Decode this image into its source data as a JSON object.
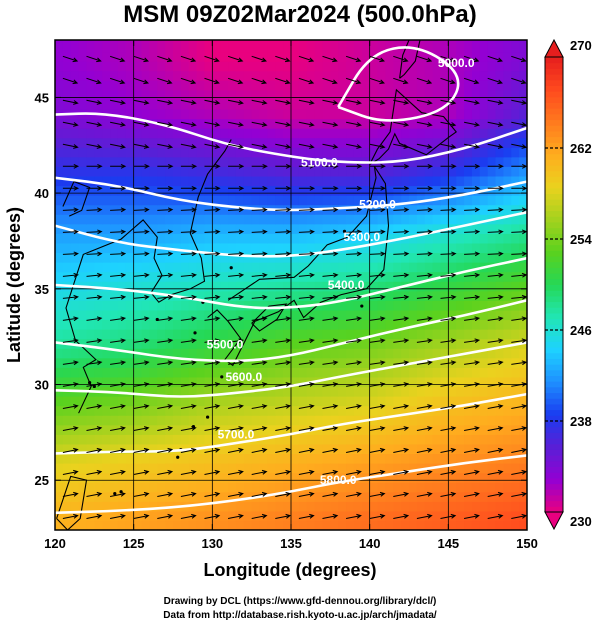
{
  "chart_data": {
    "type": "heatmap",
    "title": "MSM 09Z02Mar2024 (500.0hPa)",
    "xlabel": "Longitude (degrees)",
    "ylabel": "Latitude  (degrees)",
    "xlim": [
      120,
      150
    ],
    "ylim": [
      22.4,
      48
    ],
    "x_ticks": [
      "120",
      "125",
      "130",
      "135",
      "140",
      "145",
      "150"
    ],
    "y_ticks": [
      "25",
      "30",
      "35",
      "40",
      "45"
    ],
    "x_tick_values": [
      120,
      125,
      130,
      135,
      140,
      145,
      150
    ],
    "y_tick_values": [
      25,
      30,
      35,
      40,
      45
    ],
    "colorbar": {
      "ticks": [
        "270",
        "262",
        "254",
        "246",
        "238",
        "230"
      ],
      "tick_values": [
        270,
        262,
        254,
        246,
        238,
        230
      ],
      "min": 230,
      "max": 270,
      "colors": [
        "#e9007f",
        "#9400d3",
        "#5a1fd6",
        "#1a3cf0",
        "#1e8fff",
        "#1ed2ff",
        "#21e6b4",
        "#25d856",
        "#5ad21e",
        "#a3d21e",
        "#ead21e",
        "#ffad1e",
        "#ff7a1e",
        "#ff4a1e",
        "#e61e1e"
      ]
    },
    "temperature_field": {
      "lat_nodes": [
        23,
        26,
        29,
        32,
        35,
        38,
        41,
        44,
        47
      ],
      "lon_nodes": [
        120,
        125,
        130,
        135,
        140,
        145,
        150
      ],
      "values": [
        [
          261,
          262,
          263,
          264,
          265,
          266,
          267
        ],
        [
          258,
          259,
          260,
          261,
          262,
          263,
          264
        ],
        [
          253,
          254,
          256,
          257,
          258,
          260,
          261
        ],
        [
          248,
          249,
          251,
          253,
          254,
          256,
          258
        ],
        [
          245,
          246,
          247,
          248,
          249,
          251,
          253
        ],
        [
          242,
          242,
          243,
          243,
          244,
          246,
          248
        ],
        [
          238,
          238,
          237,
          236,
          236,
          238,
          242
        ],
        [
          234,
          233,
          232,
          231,
          231,
          232,
          236
        ],
        [
          233,
          232,
          230,
          230,
          231,
          232,
          234
        ]
      ]
    },
    "height_contours": [
      {
        "label": "5000.0",
        "lons": [
          138,
          140,
          143,
          146,
          145,
          141,
          138
        ],
        "lats": [
          44.5,
          47.3,
          47.8,
          46.2,
          44.3,
          43.6,
          44.5
        ],
        "label_at": [
          145.5,
          46.8
        ]
      },
      {
        "label": "5100.0",
        "lons": [
          120,
          123,
          127,
          131,
          135,
          138,
          142,
          146,
          150
        ],
        "lats": [
          44.1,
          44.2,
          43.6,
          42.5,
          41.9,
          41.6,
          41.6,
          42.3,
          43.4
        ],
        "label_at": [
          136.8,
          41.6
        ]
      },
      {
        "label": "5200.0",
        "lons": [
          120,
          124,
          128,
          132,
          135,
          138,
          142,
          146,
          150
        ],
        "lats": [
          40.8,
          40.4,
          39.6,
          39.2,
          39.1,
          39.2,
          39.4,
          39.9,
          40.6
        ],
        "label_at": [
          140.5,
          39.4
        ]
      },
      {
        "label": "5300.0",
        "lons": [
          120,
          124,
          128,
          132,
          135,
          138,
          142,
          146,
          150
        ],
        "lats": [
          38.3,
          37.4,
          37.0,
          36.7,
          36.7,
          37.0,
          37.6,
          38.3,
          39.0
        ],
        "label_at": [
          139.5,
          37.7
        ]
      },
      {
        "label": "5400.0",
        "lons": [
          120,
          124,
          128,
          132,
          135,
          138,
          142,
          146,
          150
        ],
        "lats": [
          35.2,
          35.0,
          34.6,
          34.0,
          34.0,
          34.3,
          35.1,
          35.9,
          36.6
        ],
        "label_at": [
          138.5,
          35.2
        ]
      },
      {
        "label": "5500.0",
        "lons": [
          120,
          124,
          128,
          132,
          135,
          138,
          142,
          146,
          150
        ],
        "lats": [
          32.2,
          31.8,
          31.3,
          31.2,
          31.5,
          32.1,
          32.9,
          33.6,
          34.4
        ],
        "label_at": [
          130.8,
          32.1
        ]
      },
      {
        "label": "5600.0",
        "lons": [
          120,
          124,
          128,
          132,
          135,
          138,
          142,
          146,
          150
        ],
        "lats": [
          29.7,
          29.6,
          29.3,
          29.6,
          29.9,
          30.4,
          31.0,
          31.6,
          32.2
        ],
        "label_at": [
          132.0,
          30.4
        ]
      },
      {
        "label": "5700.0",
        "lons": [
          120,
          124,
          128,
          132,
          135,
          138,
          142,
          146,
          150
        ],
        "lats": [
          26.4,
          26.5,
          26.5,
          27.0,
          27.4,
          27.9,
          28.4,
          28.9,
          29.5
        ],
        "label_at": [
          131.5,
          27.4
        ]
      },
      {
        "label": "5800.0",
        "lons": [
          120,
          124,
          128,
          132,
          135,
          138,
          142,
          146,
          150
        ],
        "lats": [
          23.3,
          23.4,
          23.6,
          24.0,
          24.4,
          24.9,
          25.4,
          25.9,
          26.3
        ],
        "label_at": [
          138.0,
          25.0
        ]
      }
    ],
    "wind_direction_by_latitude": [
      {
        "lat": 47,
        "u": 0.9,
        "v": -0.3
      },
      {
        "lat": 44,
        "u": 1.0,
        "v": -0.2
      },
      {
        "lat": 41,
        "u": 1.0,
        "v": 0.0
      },
      {
        "lat": 38,
        "u": 1.0,
        "v": 0.05
      },
      {
        "lat": 35,
        "u": 1.0,
        "v": 0.1
      },
      {
        "lat": 32,
        "u": 1.0,
        "v": 0.15
      },
      {
        "lat": 29,
        "u": 1.0,
        "v": 0.18
      },
      {
        "lat": 26,
        "u": 1.0,
        "v": 0.2
      },
      {
        "lat": 23,
        "u": 1.0,
        "v": 0.2
      }
    ],
    "coastlines": [
      {
        "name": "korea-china",
        "lons": [
          121.5,
          122.3,
          121.8,
          122.6,
          121.3,
          120.7,
          121.8,
          124.2,
          125.6,
          126.5,
          126.3,
          126.8,
          126.1,
          126.6,
          127.4,
          128.6,
          129.5,
          129.3,
          128.6,
          129.1,
          129.7,
          130.8,
          131.2
        ],
        "lats": [
          28.5,
          29.9,
          30.9,
          31.3,
          32.3,
          34.0,
          36.8,
          37.6,
          38.6,
          37.7,
          36.6,
          35.7,
          34.8,
          34.3,
          34.7,
          35.0,
          35.4,
          36.6,
          37.9,
          39.8,
          41.0,
          42.2,
          42.8
        ]
      },
      {
        "name": "china-coast-north",
        "lons": [
          120.5,
          121.2,
          122.2,
          121.7,
          120.9
        ],
        "lats": [
          39.3,
          40.6,
          40.3,
          39.1,
          38.8
        ]
      },
      {
        "name": "kyushu-honshu",
        "lons": [
          129.7,
          130.3,
          131.0,
          131.8,
          130.8,
          131.3,
          132.7,
          134.2,
          135.2,
          135.8,
          136.9,
          138.2,
          139.8,
          140.9,
          141.2,
          141.0,
          140.3,
          140.4,
          139.8,
          138.6,
          137.3,
          136.1,
          135.2,
          133.0,
          131.0
        ],
        "lats": [
          33.5,
          33.9,
          33.3,
          32.4,
          31.3,
          31.0,
          33.3,
          33.8,
          34.4,
          33.5,
          34.3,
          34.7,
          35.0,
          36.0,
          38.3,
          40.5,
          41.4,
          40.8,
          38.8,
          37.7,
          37.3,
          36.2,
          35.6,
          35.5,
          34.4
        ]
      },
      {
        "name": "shikoku",
        "lons": [
          132.5,
          133.6,
          134.7,
          134.1,
          133.0,
          132.5
        ],
        "lats": [
          33.2,
          34.1,
          34.2,
          33.4,
          32.8,
          33.2
        ]
      },
      {
        "name": "hokkaido",
        "lons": [
          140.0,
          140.5,
          141.3,
          141.7,
          142.5,
          143.3,
          144.7,
          145.5,
          145.0,
          143.6,
          141.9,
          141.6,
          141.2,
          140.6,
          140.0
        ],
        "lats": [
          41.5,
          42.3,
          43.2,
          45.4,
          44.8,
          44.2,
          44.0,
          43.2,
          42.9,
          42.0,
          42.6,
          43.1,
          42.3,
          41.8,
          41.5
        ]
      },
      {
        "name": "sakhalin",
        "lons": [
          141.9,
          142.1,
          142.5,
          143.2,
          142.9,
          142.2,
          141.9
        ],
        "lats": [
          46.0,
          47.2,
          48.0,
          48.0,
          46.9,
          46.2,
          46.0
        ]
      },
      {
        "name": "taiwan",
        "lons": [
          120.1,
          121.0,
          122.0,
          121.6,
          120.8,
          120.1
        ],
        "lats": [
          23.0,
          25.2,
          25.0,
          23.0,
          22.4,
          23.0
        ]
      }
    ],
    "islands": [
      {
        "lon": 126.5,
        "lat": 33.4
      },
      {
        "lon": 128.9,
        "lat": 32.7
      },
      {
        "lon": 129.7,
        "lat": 28.3
      },
      {
        "lon": 128.0,
        "lat": 26.6
      },
      {
        "lon": 127.8,
        "lat": 26.2
      },
      {
        "lon": 124.2,
        "lat": 24.4
      },
      {
        "lon": 123.8,
        "lat": 24.3
      },
      {
        "lon": 130.6,
        "lat": 30.4
      },
      {
        "lon": 129.4,
        "lat": 34.3
      },
      {
        "lon": 131.2,
        "lat": 36.1
      },
      {
        "lon": 138.4,
        "lat": 38.0
      },
      {
        "lon": 139.5,
        "lat": 34.1
      },
      {
        "lon": 128.8,
        "lat": 27.8
      },
      {
        "lon": 122.2,
        "lat": 30.1
      },
      {
        "lon": 122.5,
        "lat": 29.9
      }
    ]
  },
  "credits": {
    "line1": "Drawing by DCL (https://www.gfd-dennou.org/library/dcl/)",
    "line2": "Data from http://database.rish.kyoto-u.ac.jp/arch/jmadata/"
  }
}
